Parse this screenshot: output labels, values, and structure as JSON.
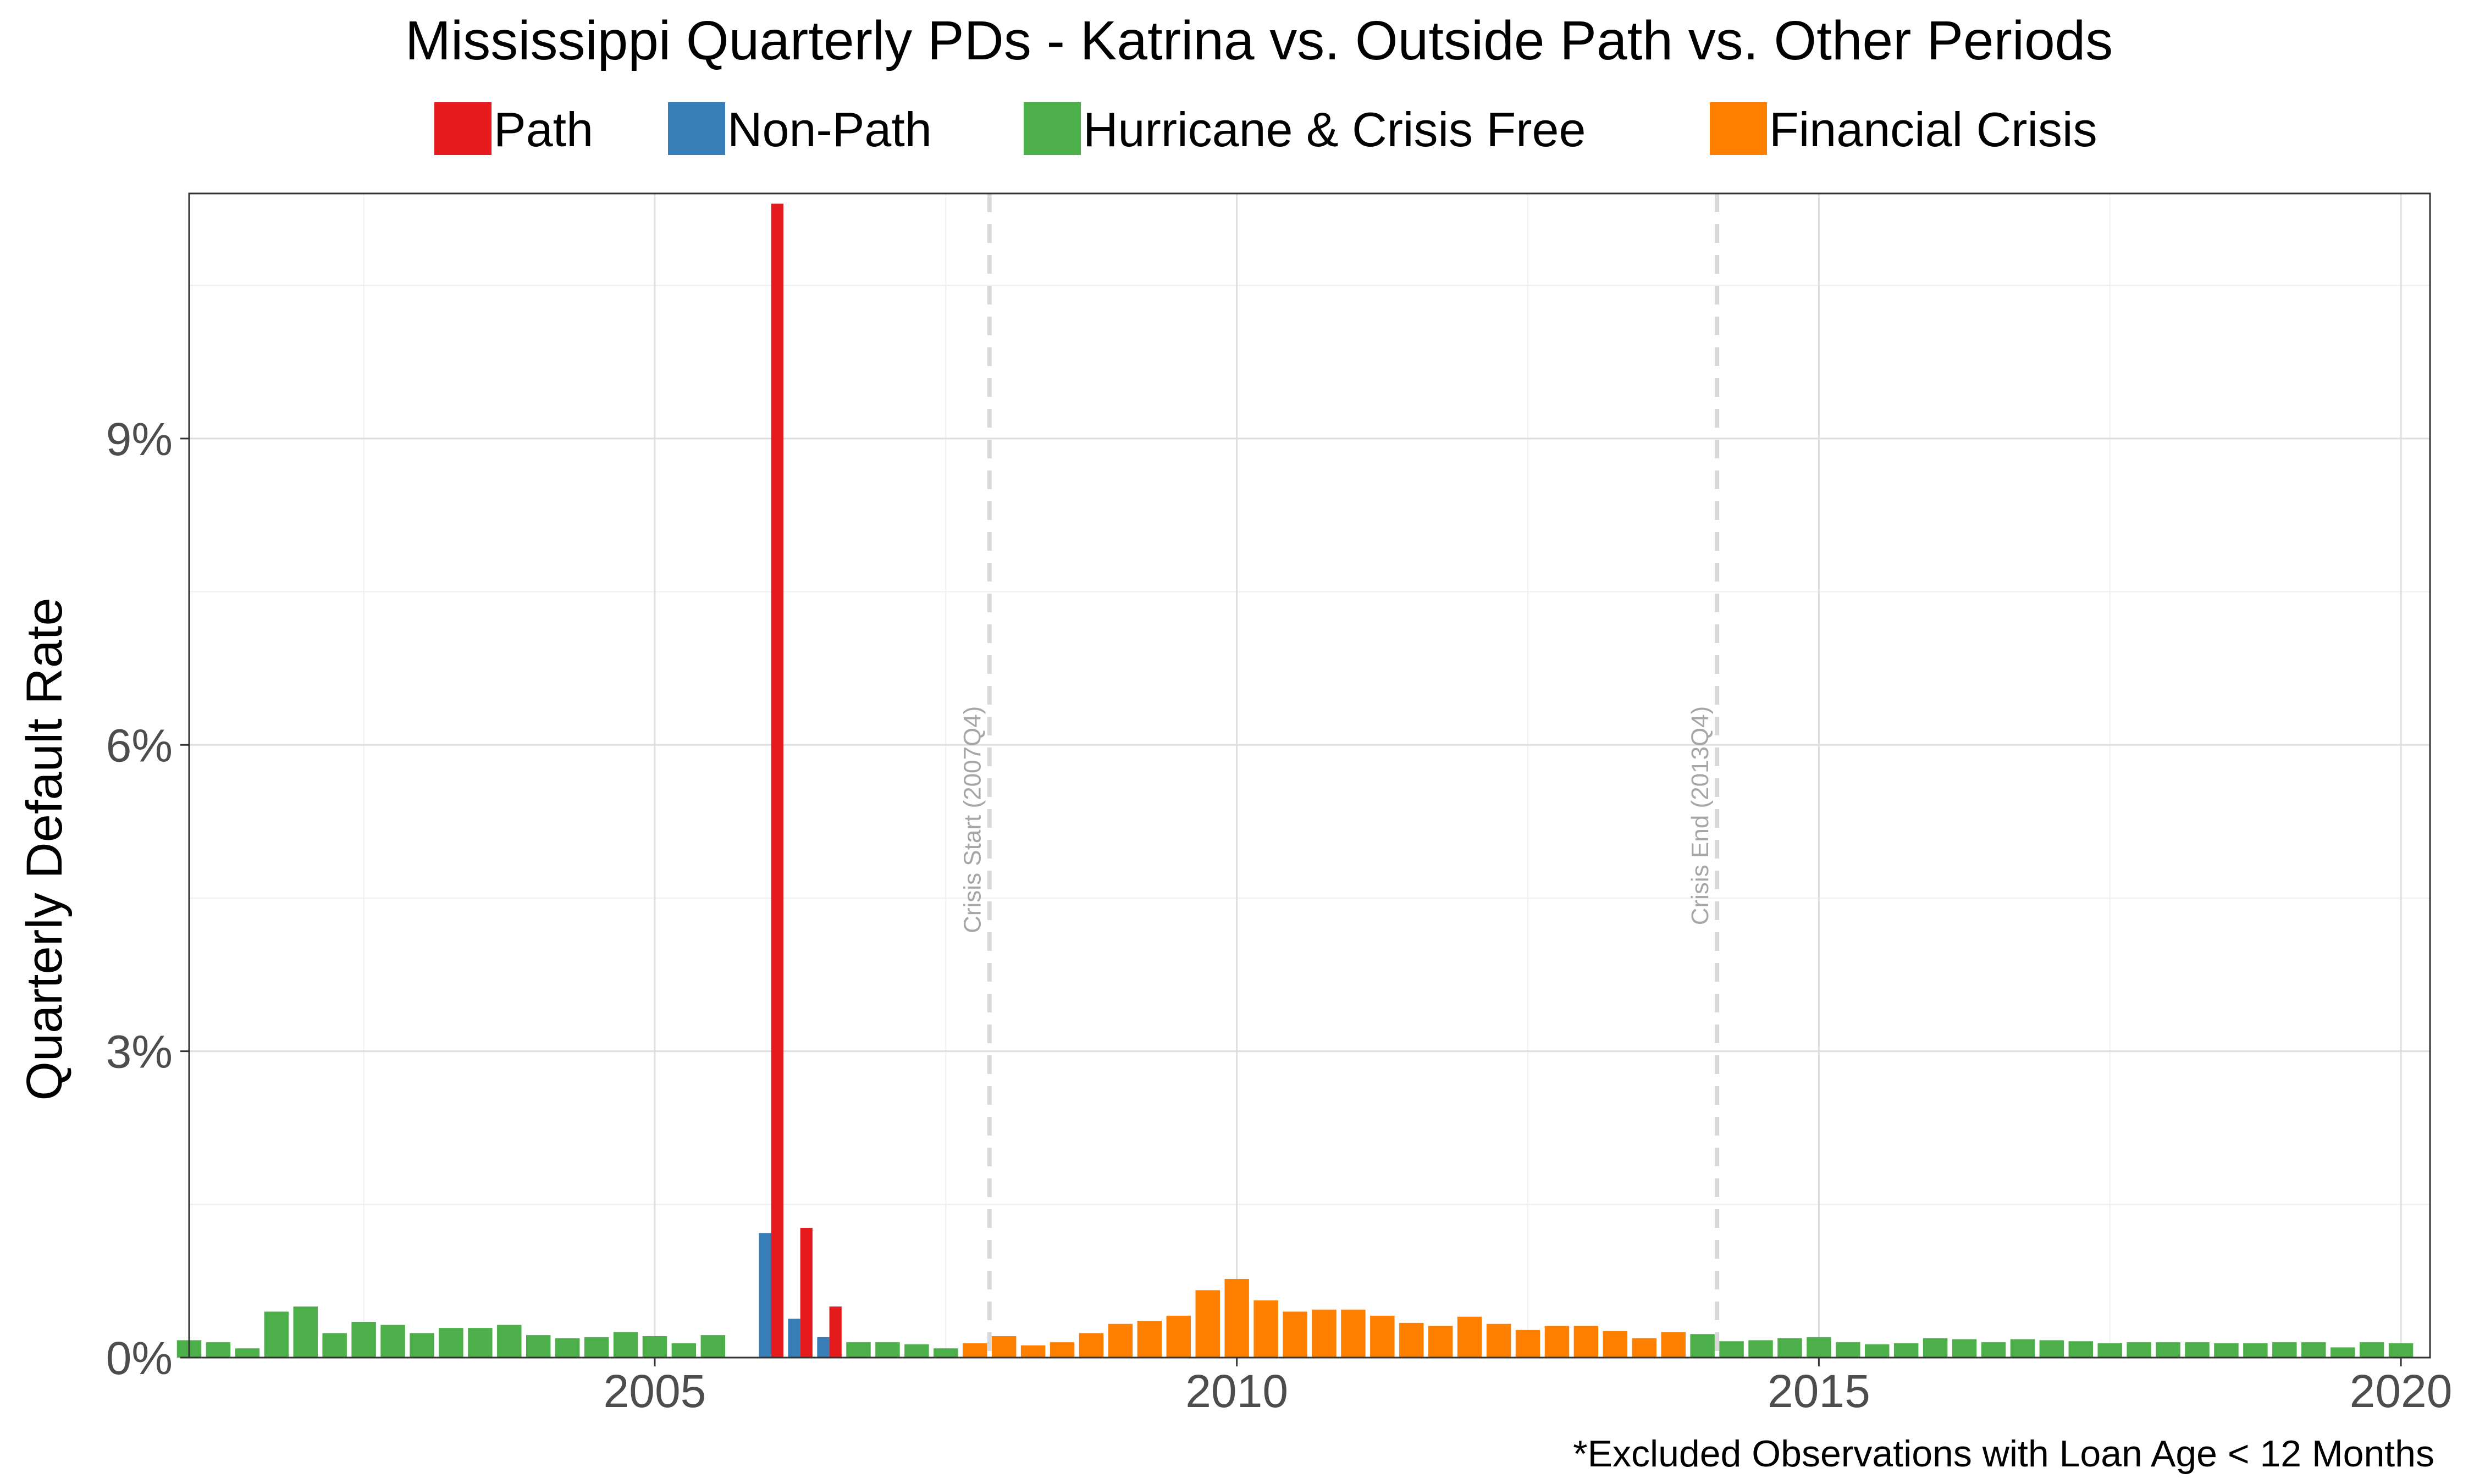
{
  "chart_data": {
    "type": "bar",
    "title": "Mississippi Quarterly PDs - Katrina vs. Outside Path vs. Other Periods",
    "ylabel": "Quarterly Default Rate",
    "xlabel": "",
    "caption": "*Excluded Observations with Loan Age < 12 Months",
    "xlim": [
      2001.0,
      2020.25
    ],
    "ylim": [
      0,
      11.4
    ],
    "x_ticks": [
      2005,
      2010,
      2015,
      2020
    ],
    "x_tick_labels": [
      "2005",
      "2010",
      "2015",
      "2020"
    ],
    "y_ticks": [
      0,
      3,
      6,
      9
    ],
    "y_tick_labels": [
      "0%",
      "3%",
      "6%",
      "9%"
    ],
    "grid": true,
    "legend_position": "top",
    "legend": [
      {
        "key": "path",
        "label": "Path",
        "color": "#e41a1c"
      },
      {
        "key": "nonpath",
        "label": "Non-Path",
        "color": "#377eb8"
      },
      {
        "key": "free",
        "label": "Hurricane & Crisis Free",
        "color": "#4daf4a"
      },
      {
        "key": "crisis",
        "label": "Financial Crisis",
        "color": "#ff7f00"
      }
    ],
    "vlines": [
      {
        "x": 2007.875,
        "label": "Crisis Start (2007Q4)"
      },
      {
        "x": 2014.125,
        "label": "Crisis End (2013Q4)"
      }
    ],
    "quarters_start": [
      "2001Q1",
      "2001Q2",
      "2001Q3",
      "2001Q4",
      "2002Q1",
      "2002Q2",
      "2002Q3",
      "2002Q4",
      "2003Q1",
      "2003Q2",
      "2003Q3",
      "2003Q4",
      "2004Q1",
      "2004Q2",
      "2004Q3",
      "2004Q4",
      "2005Q1",
      "2005Q2",
      "2005Q3"
    ],
    "values_free_start": [
      0.17,
      0.15,
      0.09,
      0.45,
      0.5,
      0.24,
      0.35,
      0.32,
      0.24,
      0.29,
      0.29,
      0.32,
      0.22,
      0.19,
      0.2,
      0.25,
      0.21,
      0.14,
      0.22
    ],
    "katrina": [
      {
        "quarter": "2006Q1",
        "path": 11.3,
        "nonpath": 1.22
      },
      {
        "quarter": "2006Q2",
        "path": 1.27,
        "nonpath": 0.38
      },
      {
        "quarter": "2006Q3",
        "path": 0.5,
        "nonpath": 0.2
      }
    ],
    "quarters_post": [
      "2006Q4",
      "2007Q1",
      "2007Q2",
      "2007Q3"
    ],
    "values_free_post": [
      0.15,
      0.15,
      0.13,
      0.09
    ],
    "quarters_crisis": [
      "2007Q4",
      "2008Q1",
      "2008Q2",
      "2008Q3",
      "2008Q4",
      "2009Q1",
      "2009Q2",
      "2009Q3",
      "2009Q4",
      "2010Q1",
      "2010Q2",
      "2010Q3",
      "2010Q4",
      "2011Q1",
      "2011Q2",
      "2011Q3",
      "2011Q4",
      "2012Q1",
      "2012Q2",
      "2012Q3",
      "2012Q4",
      "2013Q1",
      "2013Q2",
      "2013Q3",
      "2013Q4"
    ],
    "values_crisis": [
      0.14,
      0.21,
      0.12,
      0.15,
      0.24,
      0.33,
      0.36,
      0.41,
      0.66,
      0.77,
      0.56,
      0.45,
      0.47,
      0.47,
      0.41,
      0.34,
      0.31,
      0.4,
      0.33,
      0.27,
      0.31,
      0.31,
      0.26,
      0.19,
      0.25
    ],
    "quarters_end": [
      "2014Q1",
      "2014Q2",
      "2014Q3",
      "2014Q4",
      "2015Q1",
      "2015Q2",
      "2015Q3",
      "2015Q4",
      "2016Q1",
      "2016Q2",
      "2016Q3",
      "2016Q4",
      "2017Q1",
      "2017Q2",
      "2017Q3",
      "2017Q4",
      "2018Q1",
      "2018Q2",
      "2018Q3",
      "2018Q4",
      "2019Q1",
      "2019Q2",
      "2019Q3",
      "2019Q4",
      "2020Q1"
    ],
    "values_free_end": [
      0.23,
      0.16,
      0.17,
      0.19,
      0.2,
      0.15,
      0.13,
      0.14,
      0.19,
      0.18,
      0.15,
      0.18,
      0.17,
      0.16,
      0.14,
      0.15,
      0.15,
      0.15,
      0.14,
      0.14,
      0.15,
      0.15,
      0.1,
      0.15,
      0.14
    ]
  }
}
